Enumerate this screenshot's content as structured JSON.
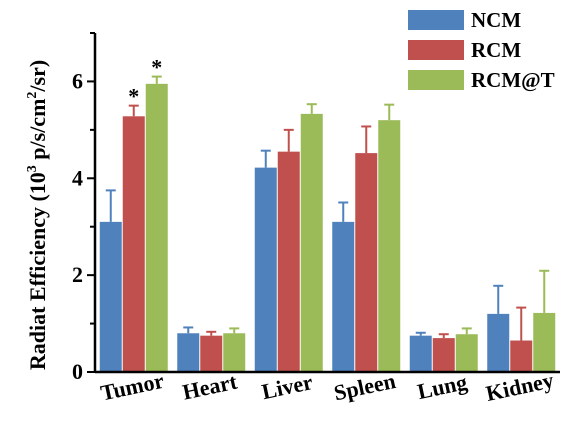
{
  "chart_data": {
    "type": "bar",
    "title": "",
    "ylabel_parts": [
      "Radiat Efficiency (10",
      "3",
      " p/s/cm",
      "2",
      "/sr)"
    ],
    "xlabel": "",
    "ylim": [
      0,
      7
    ],
    "yticks": [
      0,
      2,
      4,
      6
    ],
    "categories": [
      "Tumor",
      "Heart",
      "Liver",
      "Spleen",
      "Lung",
      "Kidney"
    ],
    "series": [
      {
        "name": "NCM",
        "color": "#4f81bd",
        "values": [
          3.1,
          0.8,
          4.22,
          3.1,
          0.75,
          1.2
        ],
        "errors": [
          0.65,
          0.12,
          0.35,
          0.4,
          0.06,
          0.58
        ]
      },
      {
        "name": "RCM",
        "color": "#c0504d",
        "values": [
          5.28,
          0.75,
          4.55,
          4.52,
          0.7,
          0.65
        ],
        "errors": [
          0.22,
          0.08,
          0.45,
          0.55,
          0.08,
          0.68
        ]
      },
      {
        "name": "RCM@T",
        "color": "#9bbb59",
        "values": [
          5.95,
          0.8,
          5.33,
          5.2,
          0.78,
          1.22
        ],
        "errors": [
          0.15,
          0.1,
          0.2,
          0.32,
          0.12,
          0.87
        ]
      }
    ],
    "annotations": [
      {
        "text": "*",
        "category": "Tumor",
        "series": "RCM"
      },
      {
        "text": "*",
        "category": "Tumor",
        "series": "RCM@T"
      }
    ],
    "legend_position": "top-right",
    "grid": false
  }
}
